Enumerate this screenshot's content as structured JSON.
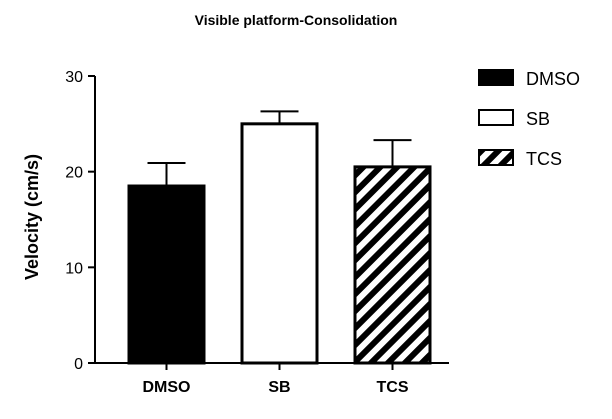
{
  "chart_data": {
    "type": "bar",
    "title": "Visible platform-Consolidation",
    "xlabel": "",
    "ylabel": "Velocity (cm/s)",
    "ylim": [
      0,
      30
    ],
    "yticks": [
      0,
      10,
      20,
      30
    ],
    "categories": [
      "DMSO",
      "SB",
      "TCS"
    ],
    "values": [
      18.5,
      25.0,
      20.5
    ],
    "errors": [
      2.4,
      1.3,
      2.8
    ],
    "fills": [
      "solid-black",
      "white",
      "diagonal-hatch"
    ],
    "legend": [
      "DMSO",
      "SB",
      "TCS"
    ],
    "legend_position": "right",
    "grid": false,
    "colors": {
      "bar": "#000000",
      "background": "#ffffff"
    }
  }
}
